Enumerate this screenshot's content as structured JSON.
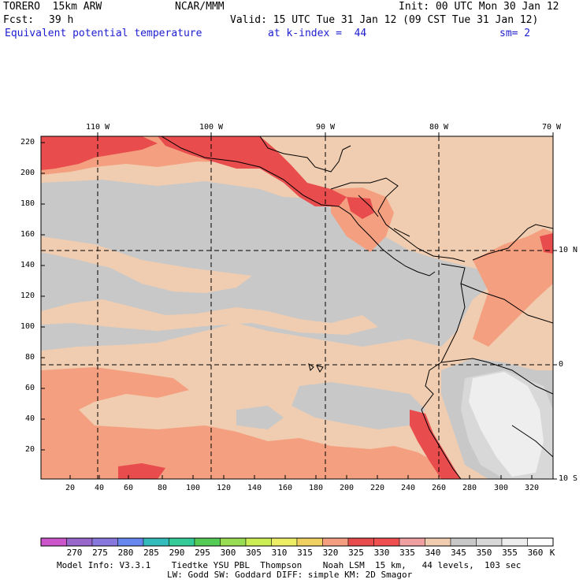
{
  "header": {
    "model": "TORERO  15km ARW",
    "org": "NCAR/MMM",
    "init": "Init: 00 UTC Mon 30 Jan 12",
    "fcst_label": "Fcst:",
    "fcst_value": "39 h",
    "valid": "Valid: 15 UTC Tue 31 Jan 12 (09 CST Tue 31 Jan 12)",
    "field": "Equivalent potential temperature",
    "level": "at k-index =  44",
    "smoothing": "sm= 2"
  },
  "map": {
    "type": "heatmap",
    "region": "Eastern tropical Pacific / Central America",
    "x_ticks": [
      "20",
      "40",
      "60",
      "80",
      "100",
      "120",
      "140",
      "160",
      "180",
      "200",
      "220",
      "240",
      "260",
      "280",
      "300",
      "320"
    ],
    "y_ticks": [
      "220",
      "200",
      "180",
      "160",
      "140",
      "120",
      "100",
      "80",
      "60",
      "40",
      "20"
    ],
    "lon_labels": [
      "110 W",
      "100 W",
      "90 W",
      "80 W",
      "70 W"
    ],
    "lat_labels": [
      "10 N",
      "0",
      "10 S"
    ],
    "colors": {
      "gray": "#c8c8c8",
      "light_gray": "#d8d8d8",
      "near_white": "#eeeeee",
      "peach": "#f0cdb0",
      "salmon": "#f4a080",
      "red": "#e84c4c"
    }
  },
  "colorbar": {
    "unit": "K",
    "labels": [
      "270",
      "275",
      "280",
      "285",
      "290",
      "295",
      "300",
      "305",
      "310",
      "315",
      "320",
      "325",
      "330",
      "335",
      "340",
      "345",
      "350",
      "355",
      "360"
    ],
    "colors": [
      "#cc55cc",
      "#9966cc",
      "#8877dd",
      "#6688ee",
      "#33bbbb",
      "#33cc99",
      "#55cc55",
      "#99dd55",
      "#ccee55",
      "#eeee66",
      "#f0d060",
      "#f4a080",
      "#e84c4c",
      "#f05050",
      "#f0a0a0",
      "#f0cdb0",
      "#c8c8c8",
      "#d8d8d8",
      "#eeeeee",
      "#ffffff"
    ]
  },
  "footer": {
    "line1": "Model Info: V3.3.1    Tiedtke YSU PBL  Thompson    Noah LSM  15 km,   44 levels,  103 sec",
    "line2": "LW: Godd SW: Goddard DIFF: simple KM: 2D Smagor"
  }
}
